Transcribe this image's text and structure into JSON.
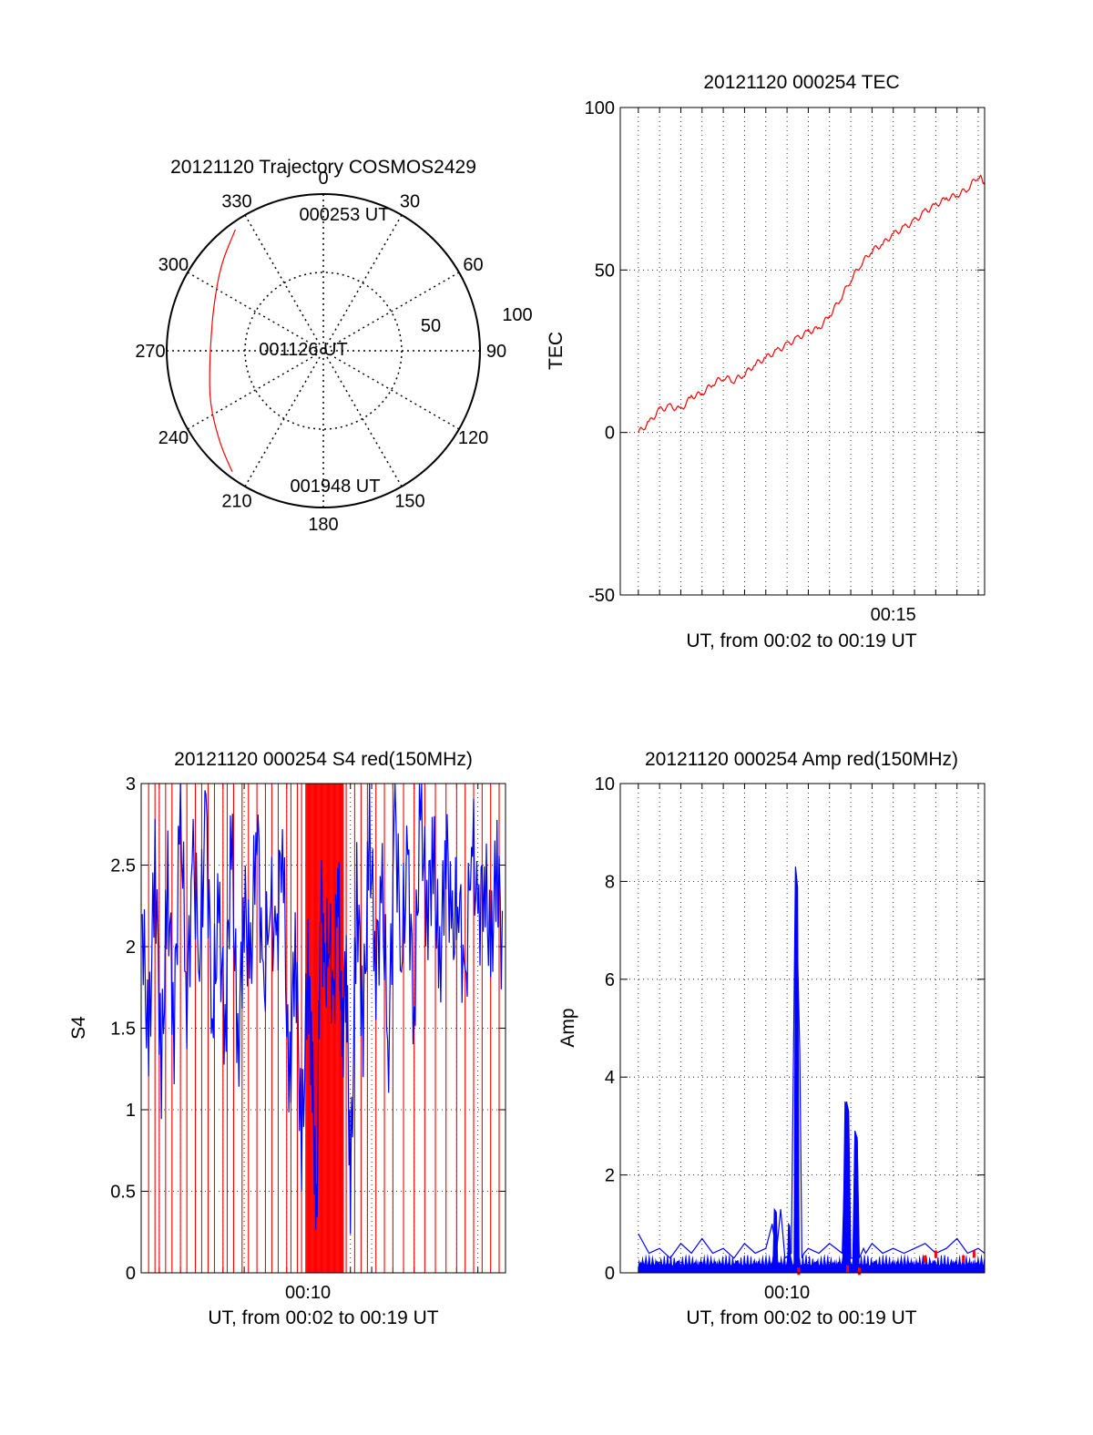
{
  "colors": {
    "primary_trace": "#ff0000",
    "secondary_trace": "#0000ff",
    "grid": "#000000",
    "background": "#ffffff"
  },
  "chart_data": [
    {
      "type": "polar",
      "title": "20121120 Trajectory COSMOS2429",
      "azimuth_labels": [
        "0",
        "30",
        "60",
        "90",
        "120",
        "150",
        "180",
        "210",
        "240",
        "270",
        "300",
        "330"
      ],
      "radial_labels": [
        "50",
        "100"
      ],
      "grid": true,
      "trajectory_labels": [
        "000253 UT",
        "001126 UT",
        "001948 UT"
      ],
      "trajectory": [
        {
          "azimuth": 324,
          "elevation": 4
        },
        {
          "azimuth": 310,
          "elevation": 13
        },
        {
          "azimuth": 292,
          "elevation": 22
        },
        {
          "azimuth": 277,
          "elevation": 25
        },
        {
          "azimuth": 262,
          "elevation": 24
        },
        {
          "azimuth": 245,
          "elevation": 18
        },
        {
          "azimuth": 228,
          "elevation": 10
        },
        {
          "azimuth": 217,
          "elevation": 3
        }
      ]
    },
    {
      "type": "line",
      "title": "20121120 000254 TEC",
      "xlabel": "UT, from 00:02 to 00:19 UT",
      "ylabel": "TEC",
      "x_unit": "minutes UT",
      "xlim": [
        2.15,
        19.3
      ],
      "ylim": [
        -50,
        100
      ],
      "yticks": [
        "100",
        "50",
        "0",
        "-50"
      ],
      "xtick_label": "00:15",
      "xtick_value": 15,
      "grid": true,
      "series": [
        {
          "color": "#ff0000",
          "x": [
            3.0,
            3.5,
            4.0,
            4.5,
            5.0,
            5.5,
            6.0,
            6.5,
            7.0,
            7.5,
            8.0,
            8.5,
            9.0,
            9.5,
            10.0,
            10.5,
            11.0,
            11.5,
            12.0,
            12.5,
            13.0,
            13.5,
            14.0,
            14.5,
            15.0,
            15.5,
            16.0,
            16.5,
            17.0,
            17.5,
            18.0,
            18.5,
            19.0,
            19.3
          ],
          "y": [
            0,
            3,
            7,
            8,
            7,
            11,
            12,
            15,
            17,
            16,
            18,
            21,
            23,
            25,
            27,
            29,
            31,
            32,
            36,
            41,
            47,
            52,
            56,
            58,
            61,
            63,
            65,
            68,
            70,
            72,
            73,
            75,
            79,
            77
          ]
        }
      ]
    },
    {
      "type": "line",
      "title": "20121120 000254 S4 red(150MHz)",
      "xlabel": "UT, from 00:02 to 00:19 UT",
      "ylabel": "S4",
      "x_unit": "minutes UT",
      "xlim": [
        2.15,
        19.3
      ],
      "ylim": [
        0,
        3
      ],
      "yticks": [
        "3",
        "2.5",
        "2",
        "1.5",
        "1",
        "0.5",
        "0"
      ],
      "xtick_label": "00:10",
      "xtick_value": 10,
      "grid": true,
      "series": [
        {
          "color": "#ff0000",
          "kind": "dense spikes from 0 to 3",
          "x": [
            2.5,
            2.8,
            3.0,
            3.3,
            3.6,
            4.0,
            4.3,
            4.7,
            5.0,
            5.3,
            5.6,
            6.0,
            6.2,
            6.5,
            6.9,
            7.2,
            7.6,
            8.0,
            8.3,
            8.6,
            9.0,
            9.2,
            9.5,
            9.7,
            9.9,
            10.1,
            10.3,
            10.5,
            10.7,
            10.9,
            11.1,
            11.3,
            11.5,
            11.8,
            12.2,
            12.5,
            12.8,
            13.2,
            13.6,
            14.0,
            14.5,
            15.0,
            15.5,
            16.0,
            16.5,
            17.0,
            17.4,
            17.8,
            18.2,
            18.6,
            19.0
          ],
          "y": [
            3,
            0,
            3,
            0,
            3,
            0,
            3,
            0,
            3,
            0,
            3,
            0,
            3,
            0,
            3,
            0,
            3,
            0,
            3,
            0,
            3,
            0,
            3,
            0,
            3,
            0,
            3,
            0,
            3,
            0,
            3,
            0,
            3,
            0,
            3,
            0,
            3,
            0,
            3,
            0,
            3,
            0,
            3,
            0,
            3,
            0,
            3,
            0,
            3,
            0,
            3
          ]
        },
        {
          "color": "#0000ff",
          "x": [
            2.2,
            2.5,
            2.8,
            3.1,
            3.4,
            3.7,
            4.0,
            4.3,
            4.6,
            4.9,
            5.2,
            5.5,
            5.8,
            6.1,
            6.4,
            6.7,
            7.0,
            7.3,
            7.6,
            7.9,
            8.2,
            8.5,
            8.8,
            9.1,
            9.4,
            9.7,
            10.0,
            10.2,
            10.4,
            10.6,
            10.8,
            11.0,
            11.2,
            11.4,
            11.6,
            11.8,
            12.0,
            12.3,
            12.6,
            12.9,
            13.2,
            13.5,
            13.8,
            14.1,
            14.4,
            14.7,
            15.0,
            15.3,
            15.6,
            15.9,
            16.2,
            16.5,
            16.8,
            17.1,
            17.4,
            17.7,
            18.0,
            18.3,
            18.6,
            18.9,
            19.2
          ],
          "y": [
            2.2,
            1.3,
            2.6,
            1.2,
            2.4,
            1.5,
            2.9,
            1.7,
            2.5,
            2.0,
            2.8,
            1.6,
            2.2,
            1.5,
            2.7,
            1.3,
            2.3,
            1.8,
            2.9,
            1.6,
            2.4,
            1.9,
            2.8,
            1.0,
            2.1,
            0.7,
            1.9,
            1.3,
            0.2,
            2.5,
            1.7,
            2.2,
            1.5,
            2.6,
            1.3,
            2.0,
            0.4,
            2.4,
            1.5,
            2.7,
            1.9,
            2.3,
            1.4,
            2.8,
            2.0,
            2.5,
            1.6,
            2.9,
            2.2,
            2.6,
            1.8,
            2.7,
            2.0,
            2.4,
            1.6,
            2.8,
            2.1,
            2.5,
            1.9,
            2.6,
            1.8
          ]
        }
      ]
    },
    {
      "type": "line",
      "title": "20121120 000254 Amp red(150MHz)",
      "xlabel": "UT, from 00:02 to 00:19 UT",
      "ylabel": "Amp",
      "x_unit": "minutes UT",
      "xlim": [
        2.15,
        19.3
      ],
      "ylim": [
        0,
        10
      ],
      "yticks": [
        "10",
        "8",
        "6",
        "4",
        "2",
        "0"
      ],
      "xtick_label": "00:10",
      "xtick_value": 10,
      "grid": true,
      "series": [
        {
          "color": "#0000ff",
          "kind": "noisy baseline near 0.1-0.5 with spikes",
          "x": [
            3.0,
            3.5,
            4.0,
            4.5,
            5.0,
            5.5,
            6.0,
            6.5,
            7.0,
            7.5,
            8.0,
            8.5,
            9.0,
            9.3,
            9.5,
            9.7,
            9.9,
            10.2,
            10.4,
            10.6,
            10.7,
            10.8,
            11.0,
            11.5,
            12.0,
            12.6,
            12.8,
            12.9,
            13.0,
            13.1,
            13.2,
            13.3,
            13.4,
            13.5,
            13.6,
            13.7,
            14.0,
            14.5,
            15.0,
            15.5,
            16.0,
            16.5,
            17.0,
            17.5,
            18.0,
            18.5,
            19.0,
            19.3
          ],
          "y": [
            0.8,
            0.4,
            0.5,
            0.3,
            0.6,
            0.4,
            0.7,
            0.4,
            0.5,
            0.3,
            0.6,
            0.4,
            0.5,
            1.0,
            0.4,
            1.3,
            0.3,
            0.4,
            8.3,
            4.5,
            0.3,
            0.4,
            0.5,
            0.4,
            0.6,
            0.4,
            3.5,
            3.3,
            0.3,
            0.3,
            2.9,
            2.7,
            0.3,
            0.4,
            0.5,
            0.4,
            0.6,
            0.4,
            0.5,
            0.4,
            0.5,
            0.6,
            0.4,
            0.5,
            0.7,
            0.4,
            0.5,
            0.4
          ]
        },
        {
          "color": "#ff0000",
          "kind": "small markers near baseline",
          "x": [
            10.55,
            12.85,
            13.4,
            16.5,
            17.0,
            18.3,
            18.8
          ],
          "y": [
            0.05,
            0.1,
            0.05,
            0.3,
            0.4,
            0.3,
            0.4
          ]
        }
      ]
    }
  ]
}
